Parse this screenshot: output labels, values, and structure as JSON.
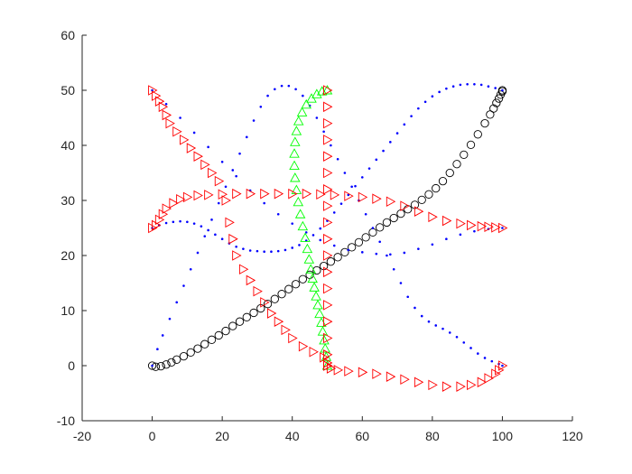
{
  "chart_data": {
    "type": "scatter",
    "title": "",
    "xlabel": "",
    "ylabel": "",
    "xlim": [
      -20,
      120
    ],
    "ylim": [
      -10,
      60
    ],
    "xticks": [
      -20,
      0,
      20,
      40,
      60,
      80,
      100,
      120
    ],
    "yticks": [
      -10,
      0,
      10,
      20,
      30,
      40,
      50,
      60
    ],
    "grid": false,
    "legend": "none",
    "axis_color": "#262626",
    "series": [
      {
        "marker": "circle",
        "color": "#000000",
        "points": [
          [
            0,
            0
          ],
          [
            1,
            -0.2
          ],
          [
            2.5,
            -0.1
          ],
          [
            4,
            0.2
          ],
          [
            5.5,
            0.6
          ],
          [
            7,
            1.1
          ],
          [
            9,
            1.7
          ],
          [
            11,
            2.4
          ],
          [
            13,
            3.1
          ],
          [
            15,
            3.9
          ],
          [
            17,
            4.7
          ],
          [
            19,
            5.5
          ],
          [
            21,
            6.3
          ],
          [
            23,
            7.2
          ],
          [
            25,
            8
          ],
          [
            27,
            8.8
          ],
          [
            29,
            9.6
          ],
          [
            31,
            10.4
          ],
          [
            33,
            11.2
          ],
          [
            35,
            12.1
          ],
          [
            37,
            13
          ],
          [
            39,
            13.9
          ],
          [
            41,
            14.8
          ],
          [
            43,
            15.7
          ],
          [
            45,
            16.5
          ],
          [
            47,
            17.3
          ],
          [
            49,
            18.1
          ],
          [
            51,
            18.9
          ],
          [
            53,
            19.7
          ],
          [
            55,
            20.6
          ],
          [
            57,
            21.5
          ],
          [
            59,
            22.4
          ],
          [
            61,
            23.3
          ],
          [
            63,
            24.2
          ],
          [
            65,
            25.1
          ],
          [
            67,
            26
          ],
          [
            69,
            26.8
          ],
          [
            71,
            27.6
          ],
          [
            73,
            28.4
          ],
          [
            75,
            29.2
          ],
          [
            77,
            30.1
          ],
          [
            79,
            31.1
          ],
          [
            81,
            32.2
          ],
          [
            83,
            33.5
          ],
          [
            85,
            35
          ],
          [
            87,
            36.6
          ],
          [
            89,
            38.3
          ],
          [
            91,
            40.1
          ],
          [
            93,
            42
          ],
          [
            95,
            44
          ],
          [
            96.5,
            45.6
          ],
          [
            97.5,
            46.7
          ],
          [
            98.3,
            47.7
          ],
          [
            99,
            48.5
          ],
          [
            99.5,
            49.2
          ],
          [
            100,
            49.8
          ],
          [
            100,
            50
          ]
        ]
      },
      {
        "marker": "dot",
        "color": "#0000ff",
        "points": [
          [
            0,
            0
          ],
          [
            1.5,
            3
          ],
          [
            3,
            5.5
          ],
          [
            5,
            8.5
          ],
          [
            7,
            11.5
          ],
          [
            9,
            14.5
          ],
          [
            11,
            17.5
          ],
          [
            13,
            20.5
          ],
          [
            15,
            23.5
          ],
          [
            17,
            26.5
          ],
          [
            19,
            29.5
          ],
          [
            21,
            32.5
          ],
          [
            23,
            35.5
          ],
          [
            25,
            38.5
          ],
          [
            27,
            41.5
          ],
          [
            29,
            44.5
          ],
          [
            31,
            47
          ],
          [
            33,
            49
          ],
          [
            35,
            50.2
          ],
          [
            37,
            50.8
          ],
          [
            39,
            50.8
          ],
          [
            41,
            50.2
          ],
          [
            43,
            49
          ],
          [
            45,
            47.2
          ],
          [
            47,
            45
          ],
          [
            49,
            42.5
          ],
          [
            51,
            40
          ],
          [
            53,
            37.5
          ],
          [
            55,
            35
          ],
          [
            57,
            32.5
          ],
          [
            59,
            30
          ],
          [
            61,
            27.5
          ],
          [
            63,
            25
          ],
          [
            65,
            22.5
          ],
          [
            67,
            20
          ],
          [
            69,
            17.5
          ],
          [
            71,
            15
          ],
          [
            73,
            12.5
          ],
          [
            75,
            10.5
          ],
          [
            77,
            9
          ],
          [
            79,
            8
          ],
          [
            81,
            7.3
          ],
          [
            83,
            6.7
          ],
          [
            85,
            6
          ],
          [
            87,
            5.2
          ],
          [
            89,
            4.2
          ],
          [
            91,
            3.2
          ],
          [
            93,
            2.2
          ],
          [
            95,
            1.4
          ],
          [
            97,
            0.8
          ],
          [
            99,
            0.3
          ],
          [
            100,
            0
          ],
          [
            0,
            50
          ],
          [
            4,
            47.5
          ],
          [
            8,
            45
          ],
          [
            12,
            42.3
          ],
          [
            16,
            39.7
          ],
          [
            20,
            37
          ],
          [
            24,
            34.4
          ],
          [
            28,
            31.8
          ],
          [
            32,
            29.5
          ],
          [
            36,
            27.5
          ],
          [
            40,
            25.8
          ],
          [
            44,
            24.2
          ],
          [
            48,
            22.8
          ],
          [
            52,
            21.8
          ],
          [
            56,
            21
          ],
          [
            60,
            20.6
          ],
          [
            64,
            20.3
          ],
          [
            68,
            20.2
          ],
          [
            72,
            20.5
          ],
          [
            76,
            21.2
          ],
          [
            80,
            22
          ],
          [
            84,
            23
          ],
          [
            88,
            23.8
          ],
          [
            92,
            24.4
          ],
          [
            96,
            24.8
          ],
          [
            100,
            25
          ],
          [
            0,
            25
          ],
          [
            2,
            25.5
          ],
          [
            4,
            25.9
          ],
          [
            6,
            26.1
          ],
          [
            8,
            26.2
          ],
          [
            10,
            26.1
          ],
          [
            12,
            25.8
          ],
          [
            14,
            25.3
          ],
          [
            16,
            24.6
          ],
          [
            18,
            23.8
          ],
          [
            20,
            23
          ],
          [
            22,
            22.2
          ],
          [
            24,
            21.6
          ],
          [
            26,
            21.2
          ],
          [
            28,
            20.9
          ],
          [
            30,
            20.8
          ],
          [
            32,
            20.7
          ],
          [
            34,
            20.7
          ],
          [
            36,
            20.8
          ],
          [
            38,
            21
          ],
          [
            40,
            21.4
          ],
          [
            42,
            21.9
          ],
          [
            44,
            22.7
          ],
          [
            46,
            23.7
          ],
          [
            48,
            24.9
          ],
          [
            50,
            26.3
          ],
          [
            52,
            27.8
          ],
          [
            54,
            29.4
          ],
          [
            56,
            31
          ],
          [
            58,
            32.6
          ],
          [
            60,
            34.2
          ],
          [
            62,
            35.8
          ],
          [
            64,
            37.4
          ],
          [
            66,
            39
          ],
          [
            68,
            40.6
          ],
          [
            70,
            42.2
          ],
          [
            72,
            43.8
          ],
          [
            74,
            45.3
          ],
          [
            76,
            46.7
          ],
          [
            78,
            47.9
          ],
          [
            80,
            48.9
          ],
          [
            82,
            49.7
          ],
          [
            84,
            50.3
          ],
          [
            86,
            50.7
          ],
          [
            88,
            51
          ],
          [
            90,
            51.1
          ],
          [
            92,
            51.1
          ],
          [
            94,
            51
          ],
          [
            96,
            50.7
          ],
          [
            98,
            50.4
          ],
          [
            100,
            50
          ]
        ]
      },
      {
        "marker": "triangle-up",
        "color": "#00ff00",
        "points": [
          [
            50,
            50
          ],
          [
            48.5,
            49.8
          ],
          [
            47,
            49.3
          ],
          [
            45.5,
            48.5
          ],
          [
            44,
            47.4
          ],
          [
            42.8,
            46
          ],
          [
            41.8,
            44.4
          ],
          [
            41.2,
            42.6
          ],
          [
            40.8,
            40.6
          ],
          [
            40.6,
            38.5
          ],
          [
            40.6,
            36.3
          ],
          [
            40.8,
            34.1
          ],
          [
            41.2,
            31.9
          ],
          [
            41.7,
            29.7
          ],
          [
            42.3,
            27.5
          ],
          [
            43,
            25.3
          ],
          [
            43.7,
            23.2
          ],
          [
            44.3,
            21.2
          ],
          [
            44.8,
            19.3
          ],
          [
            45.3,
            17.5
          ],
          [
            45.8,
            15.8
          ],
          [
            46.3,
            14.2
          ],
          [
            46.8,
            12.6
          ],
          [
            47.3,
            11
          ],
          [
            47.8,
            9.4
          ],
          [
            48.3,
            7.8
          ],
          [
            48.7,
            6.2
          ],
          [
            49.1,
            4.6
          ],
          [
            49.4,
            3.1
          ],
          [
            49.7,
            1.6
          ],
          [
            50,
            0
          ]
        ]
      },
      {
        "marker": "triangle-right",
        "color": "#ff0000",
        "points": [
          [
            0,
            50
          ],
          [
            1,
            49
          ],
          [
            2,
            48
          ],
          [
            3,
            47
          ],
          [
            4,
            45.5
          ],
          [
            5,
            44
          ],
          [
            7,
            42.5
          ],
          [
            9,
            41
          ],
          [
            11,
            39.5
          ],
          [
            13,
            38
          ],
          [
            15,
            36.5
          ],
          [
            17,
            35
          ],
          [
            19,
            33.5
          ],
          [
            21,
            30
          ],
          [
            22,
            26
          ],
          [
            23,
            23
          ],
          [
            24,
            20
          ],
          [
            26,
            17.5
          ],
          [
            28,
            15.5
          ],
          [
            30,
            13.5
          ],
          [
            32,
            11.5
          ],
          [
            34,
            9.5
          ],
          [
            36,
            8
          ],
          [
            38,
            6.5
          ],
          [
            40,
            5
          ],
          [
            43,
            3.5
          ],
          [
            46,
            2.5
          ],
          [
            49,
            1.5
          ],
          [
            50,
            0.5
          ],
          [
            50,
            0
          ],
          [
            51,
            -0.5
          ],
          [
            53,
            -0.8
          ],
          [
            56,
            -1
          ],
          [
            60,
            -1.2
          ],
          [
            64,
            -1.5
          ],
          [
            68,
            -2
          ],
          [
            72,
            -2.5
          ],
          [
            76,
            -3
          ],
          [
            80,
            -3.5
          ],
          [
            84,
            -3.8
          ],
          [
            88,
            -3.8
          ],
          [
            91,
            -3.5
          ],
          [
            94,
            -3
          ],
          [
            96,
            -2.3
          ],
          [
            98,
            -1.5
          ],
          [
            99,
            -0.8
          ],
          [
            100,
            0
          ],
          [
            0,
            25
          ],
          [
            1,
            25.5
          ],
          [
            2,
            26.5
          ],
          [
            3,
            27.5
          ],
          [
            4,
            28.5
          ],
          [
            6,
            29.5
          ],
          [
            8,
            30.2
          ],
          [
            10,
            30.6
          ],
          [
            13,
            30.9
          ],
          [
            16,
            31
          ],
          [
            20,
            31.1
          ],
          [
            24,
            31.2
          ],
          [
            28,
            31.2
          ],
          [
            32,
            31.2
          ],
          [
            36,
            31.2
          ],
          [
            40,
            31.2
          ],
          [
            44,
            31.2
          ],
          [
            48,
            31.1
          ],
          [
            52,
            31
          ],
          [
            56,
            30.8
          ],
          [
            60,
            30.6
          ],
          [
            64,
            30.3
          ],
          [
            68,
            29.8
          ],
          [
            72,
            29
          ],
          [
            76,
            28
          ],
          [
            80,
            27
          ],
          [
            84,
            26.3
          ],
          [
            88,
            25.8
          ],
          [
            91,
            25.5
          ],
          [
            94,
            25.3
          ],
          [
            96,
            25.2
          ],
          [
            98,
            25.1
          ],
          [
            100,
            25
          ],
          [
            50,
            50
          ],
          [
            50,
            47
          ],
          [
            50,
            44
          ],
          [
            50,
            41
          ],
          [
            50,
            38
          ],
          [
            50,
            35
          ],
          [
            50,
            32
          ],
          [
            50,
            29
          ],
          [
            50,
            26
          ],
          [
            50,
            23
          ],
          [
            50,
            20
          ],
          [
            50,
            17
          ],
          [
            50,
            14
          ],
          [
            50,
            11
          ],
          [
            50,
            8
          ],
          [
            50,
            5
          ],
          [
            50,
            2
          ],
          [
            50,
            0
          ]
        ]
      }
    ]
  }
}
